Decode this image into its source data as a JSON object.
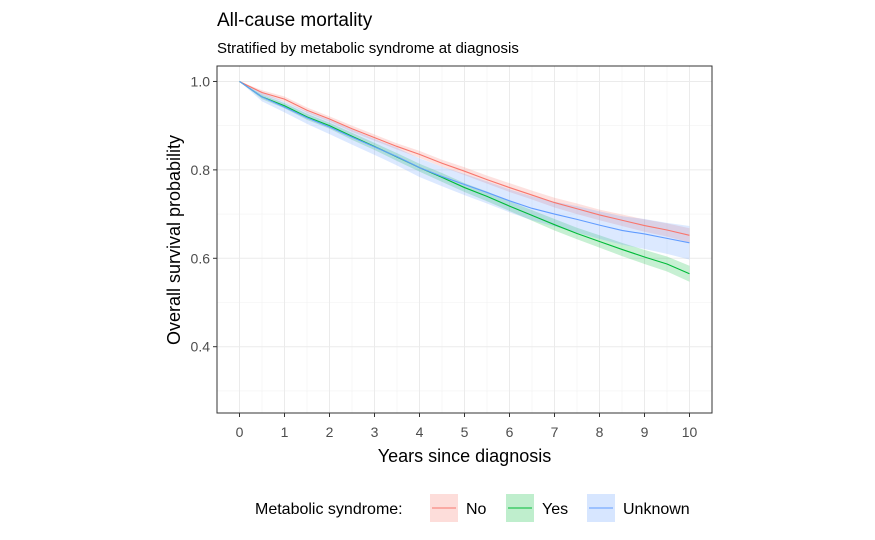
{
  "chart_data": {
    "type": "line",
    "title": "All-cause mortality",
    "subtitle": "Stratified by metabolic syndrome at diagnosis",
    "xlabel": "Years since diagnosis",
    "ylabel": "Overall survival probability",
    "xlim": [
      -0.5,
      10.5
    ],
    "ylim": [
      0.25,
      1.035
    ],
    "x_ticks": [
      0,
      1,
      2,
      3,
      4,
      5,
      6,
      7,
      8,
      9,
      10
    ],
    "x_tick_labels": [
      "0",
      "1",
      "2",
      "3",
      "4",
      "5",
      "6",
      "7",
      "8",
      "9",
      "10"
    ],
    "y_ticks": [
      0.4,
      0.6,
      0.8,
      1.0
    ],
    "y_tick_labels": [
      "0.4",
      "0.6",
      "0.8",
      "1.0"
    ],
    "grid": true,
    "legend": {
      "title": "Metabolic syndrome:",
      "position": "bottom"
    },
    "series": [
      {
        "name": "No",
        "color": "#F8766D",
        "x": [
          0,
          0.5,
          1,
          1.5,
          2,
          2.5,
          3,
          3.5,
          4,
          4.5,
          5,
          5.5,
          6,
          6.5,
          7,
          7.5,
          8,
          8.5,
          9,
          9.5,
          10
        ],
        "y": [
          1.0,
          0.975,
          0.96,
          0.935,
          0.915,
          0.893,
          0.873,
          0.853,
          0.835,
          0.815,
          0.797,
          0.778,
          0.76,
          0.743,
          0.726,
          0.712,
          0.698,
          0.686,
          0.674,
          0.664,
          0.652
        ],
        "ci_lower": [
          1.0,
          0.97,
          0.954,
          0.929,
          0.909,
          0.886,
          0.866,
          0.846,
          0.827,
          0.807,
          0.788,
          0.769,
          0.75,
          0.733,
          0.715,
          0.7,
          0.686,
          0.673,
          0.66,
          0.649,
          0.636
        ],
        "ci_upper": [
          1.0,
          0.98,
          0.966,
          0.941,
          0.921,
          0.9,
          0.88,
          0.86,
          0.843,
          0.823,
          0.806,
          0.787,
          0.77,
          0.753,
          0.737,
          0.724,
          0.71,
          0.699,
          0.688,
          0.679,
          0.668
        ]
      },
      {
        "name": "Yes",
        "color": "#00BA38",
        "x": [
          0,
          0.5,
          1,
          1.5,
          2,
          2.5,
          3,
          3.5,
          4,
          4.5,
          5,
          5.5,
          6,
          6.5,
          7,
          7.5,
          8,
          8.5,
          9,
          9.5,
          10
        ],
        "y": [
          1.0,
          0.965,
          0.945,
          0.92,
          0.9,
          0.876,
          0.853,
          0.829,
          0.805,
          0.783,
          0.76,
          0.74,
          0.718,
          0.697,
          0.676,
          0.656,
          0.638,
          0.62,
          0.603,
          0.587,
          0.565
        ],
        "ci_lower": [
          1.0,
          0.96,
          0.939,
          0.913,
          0.893,
          0.868,
          0.845,
          0.82,
          0.796,
          0.773,
          0.75,
          0.729,
          0.707,
          0.685,
          0.663,
          0.643,
          0.624,
          0.605,
          0.587,
          0.57,
          0.547
        ],
        "ci_upper": [
          1.0,
          0.97,
          0.951,
          0.927,
          0.907,
          0.884,
          0.861,
          0.838,
          0.814,
          0.793,
          0.77,
          0.751,
          0.729,
          0.709,
          0.689,
          0.669,
          0.652,
          0.635,
          0.619,
          0.604,
          0.583
        ]
      },
      {
        "name": "Unknown",
        "color": "#619CFF",
        "x": [
          0,
          0.5,
          1,
          1.5,
          2,
          2.5,
          3,
          3.5,
          4,
          4.5,
          5,
          5.5,
          6,
          6.5,
          7,
          7.5,
          8,
          8.5,
          9,
          9.5,
          10
        ],
        "y": [
          1.0,
          0.965,
          0.942,
          0.918,
          0.897,
          0.874,
          0.852,
          0.83,
          0.805,
          0.785,
          0.767,
          0.749,
          0.73,
          0.713,
          0.7,
          0.688,
          0.675,
          0.663,
          0.655,
          0.645,
          0.635
        ],
        "ci_lower": [
          1.0,
          0.955,
          0.93,
          0.904,
          0.881,
          0.857,
          0.834,
          0.81,
          0.784,
          0.763,
          0.743,
          0.724,
          0.704,
          0.686,
          0.672,
          0.658,
          0.644,
          0.631,
          0.621,
          0.61,
          0.597
        ],
        "ci_upper": [
          1.0,
          0.975,
          0.954,
          0.932,
          0.913,
          0.891,
          0.87,
          0.85,
          0.826,
          0.807,
          0.791,
          0.774,
          0.756,
          0.74,
          0.728,
          0.718,
          0.706,
          0.695,
          0.689,
          0.68,
          0.673
        ]
      }
    ]
  }
}
